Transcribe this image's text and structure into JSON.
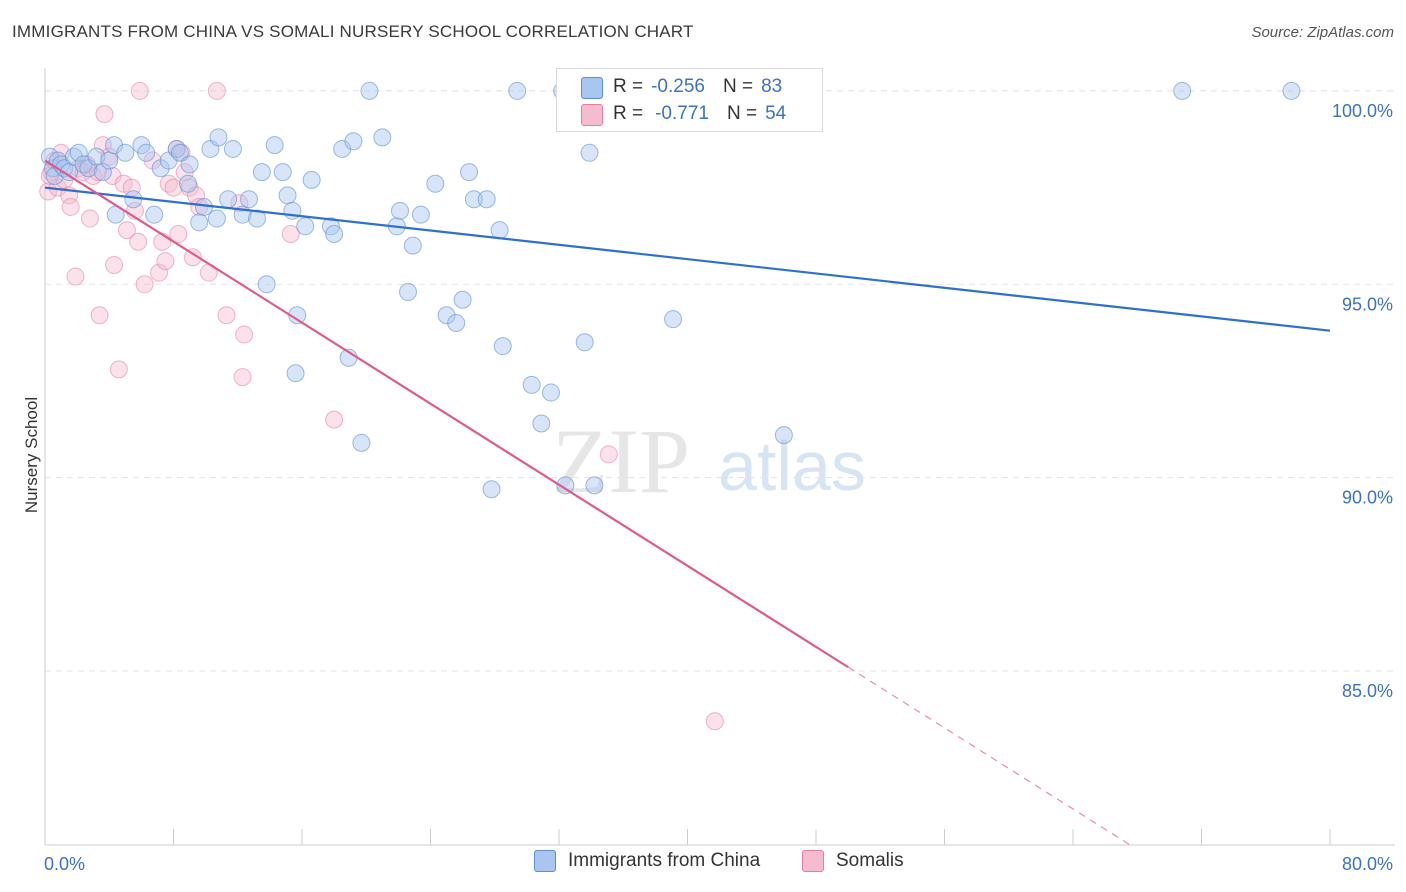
{
  "title": "IMMIGRANTS FROM CHINA VS SOMALI NURSERY SCHOOL CORRELATION CHART",
  "source": "Source: ZipAtlas.com",
  "watermark": {
    "zip": "ZIP",
    "atlas": "atlas"
  },
  "legend_top": {
    "rows": [
      {
        "r_label": "R =",
        "r_value": "-0.256",
        "n_label": "N =",
        "n_value": "83"
      },
      {
        "r_label": "R =",
        "r_value": "-0.771",
        "n_label": "N =",
        "n_value": "54"
      }
    ]
  },
  "chart_data": {
    "type": "scatter",
    "title": "IMMIGRANTS FROM CHINA VS SOMALI NURSERY SCHOOL CORRELATION CHART",
    "xlabel": "",
    "ylabel": "Nursery School",
    "xlim": [
      0,
      80
    ],
    "ylim": [
      80.5,
      100.8
    ],
    "x_tick_labels": [
      "0.0%",
      "80.0%"
    ],
    "y_ticks": [
      85,
      90,
      95,
      100
    ],
    "y_tick_labels": [
      "85.0%",
      "90.0%",
      "95.0%",
      "100.0%"
    ],
    "grid": true,
    "legend_position": "bottom",
    "colors": {
      "china": "#5b8fd6",
      "somali": "#e97aa0",
      "china_fill": "#a9c6f0",
      "somali_fill": "#f5bcd0",
      "axis_text": "#3b73c4"
    },
    "series": [
      {
        "name": "Immigrants from China",
        "r": -0.256,
        "n": 83,
        "trend": {
          "x0": 0,
          "y0": 97.5,
          "x1": 80,
          "y1": 93.8
        },
        "points": [
          [
            0.3,
            98.3
          ],
          [
            0.5,
            98.0
          ],
          [
            0.6,
            97.8
          ],
          [
            0.8,
            98.2
          ],
          [
            1.0,
            98.1
          ],
          [
            1.2,
            98.0
          ],
          [
            1.5,
            97.9
          ],
          [
            1.8,
            98.3
          ],
          [
            2.1,
            98.4
          ],
          [
            2.4,
            98.1
          ],
          [
            2.7,
            98.0
          ],
          [
            3.2,
            98.3
          ],
          [
            3.6,
            97.9
          ],
          [
            4.0,
            98.2
          ],
          [
            4.3,
            98.6
          ],
          [
            4.4,
            96.8
          ],
          [
            5.0,
            98.4
          ],
          [
            5.5,
            97.2
          ],
          [
            6.0,
            98.6
          ],
          [
            6.3,
            98.4
          ],
          [
            6.8,
            96.8
          ],
          [
            7.2,
            98.0
          ],
          [
            7.7,
            98.2
          ],
          [
            8.2,
            98.5
          ],
          [
            8.4,
            98.4
          ],
          [
            8.9,
            97.6
          ],
          [
            9.0,
            98.1
          ],
          [
            9.6,
            96.6
          ],
          [
            9.9,
            97.0
          ],
          [
            10.3,
            98.5
          ],
          [
            10.7,
            96.7
          ],
          [
            10.8,
            98.8
          ],
          [
            11.4,
            97.2
          ],
          [
            11.7,
            98.5
          ],
          [
            12.3,
            96.8
          ],
          [
            12.7,
            97.2
          ],
          [
            13.2,
            96.7
          ],
          [
            13.5,
            97.9
          ],
          [
            13.8,
            95.0
          ],
          [
            14.3,
            98.6
          ],
          [
            14.8,
            97.9
          ],
          [
            15.1,
            97.3
          ],
          [
            15.4,
            96.9
          ],
          [
            15.6,
            92.7
          ],
          [
            15.7,
            94.2
          ],
          [
            16.2,
            96.5
          ],
          [
            16.6,
            97.7
          ],
          [
            17.8,
            96.5
          ],
          [
            18.0,
            96.3
          ],
          [
            18.5,
            98.5
          ],
          [
            18.9,
            93.1
          ],
          [
            19.2,
            98.7
          ],
          [
            19.7,
            90.9
          ],
          [
            20.2,
            100.0
          ],
          [
            21.0,
            98.8
          ],
          [
            21.9,
            96.5
          ],
          [
            22.1,
            96.9
          ],
          [
            22.6,
            94.8
          ],
          [
            22.9,
            96.0
          ],
          [
            23.4,
            96.8
          ],
          [
            24.3,
            97.6
          ],
          [
            25.0,
            94.2
          ],
          [
            25.6,
            94.0
          ],
          [
            26.0,
            94.6
          ],
          [
            26.4,
            97.9
          ],
          [
            26.7,
            97.2
          ],
          [
            27.5,
            97.2
          ],
          [
            27.8,
            89.7
          ],
          [
            28.3,
            96.4
          ],
          [
            28.5,
            93.4
          ],
          [
            29.4,
            100.0
          ],
          [
            30.3,
            92.4
          ],
          [
            30.9,
            91.4
          ],
          [
            31.5,
            92.2
          ],
          [
            32.2,
            100.0
          ],
          [
            32.4,
            89.8
          ],
          [
            33.6,
            93.5
          ],
          [
            33.9,
            98.4
          ],
          [
            34.2,
            89.8
          ],
          [
            39.1,
            94.1
          ],
          [
            46.0,
            91.1
          ],
          [
            70.8,
            100.0
          ],
          [
            77.6,
            100.0
          ]
        ]
      },
      {
        "name": "Somalis",
        "r": -0.771,
        "n": 54,
        "trend": {
          "x0": 0,
          "y0": 98.2,
          "x1": 50,
          "y1": 85.1,
          "x_ext": 80
        },
        "points": [
          [
            0.2,
            97.4
          ],
          [
            0.4,
            97.9
          ],
          [
            0.6,
            98.2
          ],
          [
            0.8,
            97.5
          ],
          [
            1.0,
            98.4
          ],
          [
            1.2,
            97.7
          ],
          [
            1.5,
            97.3
          ],
          [
            1.6,
            97.0
          ],
          [
            1.9,
            95.2
          ],
          [
            2.1,
            98.0
          ],
          [
            2.4,
            97.9
          ],
          [
            2.8,
            96.7
          ],
          [
            3.0,
            97.8
          ],
          [
            3.3,
            97.9
          ],
          [
            3.4,
            94.2
          ],
          [
            3.6,
            98.6
          ],
          [
            3.7,
            99.4
          ],
          [
            4.0,
            98.3
          ],
          [
            4.2,
            97.8
          ],
          [
            4.3,
            95.5
          ],
          [
            4.6,
            92.8
          ],
          [
            4.9,
            97.6
          ],
          [
            5.1,
            96.4
          ],
          [
            5.4,
            97.5
          ],
          [
            5.6,
            96.9
          ],
          [
            5.8,
            96.1
          ],
          [
            5.9,
            100.0
          ],
          [
            6.2,
            95.0
          ],
          [
            6.7,
            98.2
          ],
          [
            7.1,
            95.3
          ],
          [
            7.3,
            96.1
          ],
          [
            7.5,
            95.6
          ],
          [
            7.7,
            97.6
          ],
          [
            8.0,
            97.5
          ],
          [
            8.2,
            98.5
          ],
          [
            8.3,
            96.3
          ],
          [
            8.5,
            98.4
          ],
          [
            8.7,
            97.9
          ],
          [
            9.0,
            97.5
          ],
          [
            9.2,
            95.7
          ],
          [
            9.4,
            97.3
          ],
          [
            9.6,
            97.0
          ],
          [
            10.2,
            95.3
          ],
          [
            10.7,
            100.0
          ],
          [
            11.3,
            94.2
          ],
          [
            12.1,
            97.1
          ],
          [
            12.4,
            93.7
          ],
          [
            12.3,
            92.6
          ],
          [
            15.3,
            96.3
          ],
          [
            18.0,
            91.5
          ],
          [
            35.1,
            90.6
          ],
          [
            41.7,
            83.7
          ],
          [
            0.3,
            97.8
          ],
          [
            2.6,
            98.1
          ]
        ]
      }
    ]
  },
  "bottom_legend": [
    "Immigrants from China",
    "Somalis"
  ]
}
